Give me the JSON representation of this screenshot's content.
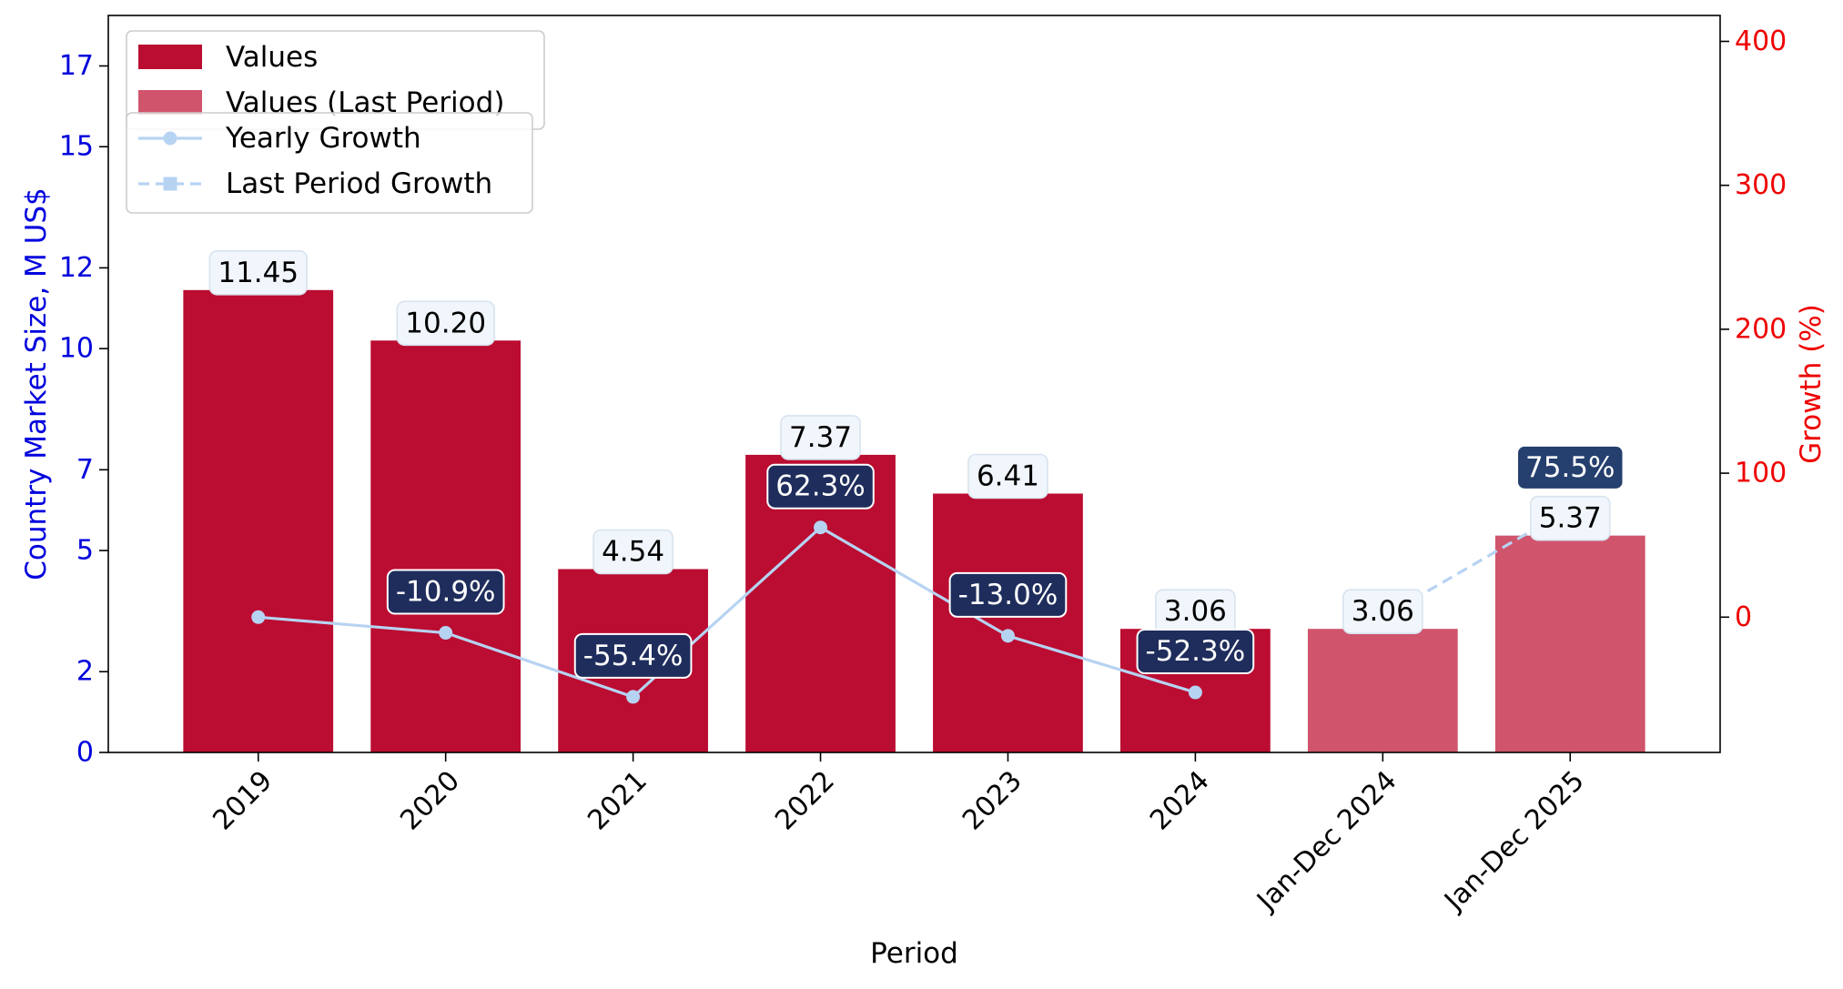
{
  "chart_data": {
    "type": "bar",
    "xlabel": "Period",
    "ylabel_left": "Country Market Size, M US$",
    "ylabel_right": "Growth (%)",
    "categories": [
      "2019",
      "2020",
      "2021",
      "2022",
      "2023",
      "2024",
      "Jan-Dec 2024",
      "Jan-Dec 2025"
    ],
    "y_left": {
      "ticks": [
        0,
        2,
        5,
        7,
        10,
        12,
        15,
        17
      ],
      "ylim": [
        0,
        18.25
      ]
    },
    "y_right": {
      "ticks": [
        0,
        100,
        200,
        300,
        400
      ],
      "ylim": [
        -94,
        418
      ]
    },
    "series": [
      {
        "name": "Values",
        "kind": "bar",
        "axis": "left",
        "color": "#bb0c31",
        "values": [
          11.45,
          10.2,
          4.54,
          7.37,
          6.41,
          3.06,
          null,
          null
        ]
      },
      {
        "name": "Values (Last Period)",
        "kind": "bar",
        "axis": "left",
        "color": "#d0546c",
        "values": [
          null,
          null,
          null,
          null,
          null,
          null,
          3.06,
          5.37
        ]
      },
      {
        "name": "Yearly Growth",
        "kind": "line",
        "axis": "right",
        "color": "#b7d3f2",
        "marker": "circle",
        "values": [
          0,
          -10.9,
          -55.4,
          62.3,
          -13.0,
          -52.3,
          null,
          null
        ]
      },
      {
        "name": "Last Period Growth",
        "kind": "line",
        "axis": "right",
        "color": "#b7d3f2",
        "marker": "square",
        "dashed": true,
        "values": [
          null,
          null,
          null,
          null,
          null,
          null,
          0,
          75.5
        ]
      }
    ],
    "bar_labels": [
      "11.45",
      "10.20",
      "4.54",
      "7.37",
      "6.41",
      "3.06",
      "3.06",
      "5.37"
    ],
    "growth_labels": [
      "",
      "-10.9%",
      "-55.4%",
      "62.3%",
      "-13.0%",
      "-52.3%",
      "",
      "75.5%"
    ],
    "legend_placement": "top-left",
    "grid": false,
    "colors": {
      "left_axis": "#0000dd",
      "right_axis": "#ee0000",
      "yearly_label_bg": "#1e2d5c",
      "last_label_bg": "#253f6e",
      "value_label_bg": "#f0f6fb"
    }
  }
}
